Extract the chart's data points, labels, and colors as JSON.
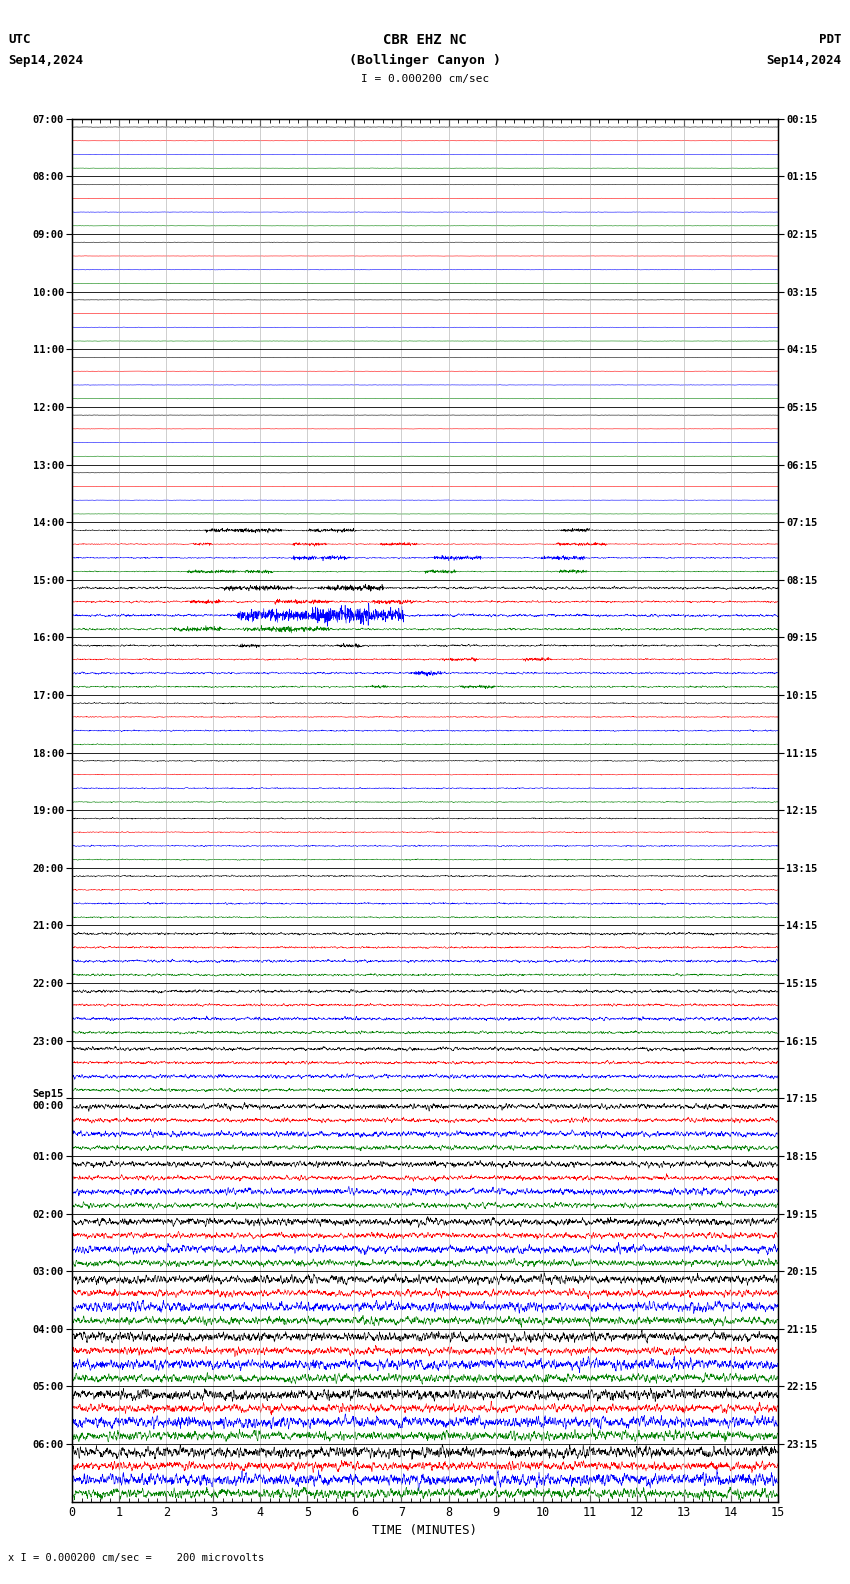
{
  "title_line1": "CBR EHZ NC",
  "title_line2": "(Bollinger Canyon )",
  "title_line3": "I = 0.000200 cm/sec",
  "left_label": "UTC",
  "left_date": "Sep14,2024",
  "right_label": "PDT",
  "right_date": "Sep14,2024",
  "xlabel": "TIME (MINUTES)",
  "footer": "x I = 0.000200 cm/sec =    200 microvolts",
  "xlim": [
    0,
    15
  ],
  "xticks": [
    0,
    1,
    2,
    3,
    4,
    5,
    6,
    7,
    8,
    9,
    10,
    11,
    12,
    13,
    14,
    15
  ],
  "utc_times": [
    "07:00",
    "08:00",
    "09:00",
    "10:00",
    "11:00",
    "12:00",
    "13:00",
    "14:00",
    "15:00",
    "16:00",
    "17:00",
    "18:00",
    "19:00",
    "20:00",
    "21:00",
    "22:00",
    "23:00",
    "Sep15\n00:00",
    "01:00",
    "02:00",
    "03:00",
    "04:00",
    "05:00",
    "06:00"
  ],
  "pdt_times": [
    "00:15",
    "01:15",
    "02:15",
    "03:15",
    "04:15",
    "05:15",
    "06:15",
    "07:15",
    "08:15",
    "09:15",
    "10:15",
    "11:15",
    "12:15",
    "13:15",
    "14:15",
    "15:15",
    "16:15",
    "17:15",
    "18:15",
    "19:15",
    "20:15",
    "21:15",
    "22:15",
    "23:15"
  ],
  "n_rows": 24,
  "traces_per_row": 4,
  "colors": [
    "black",
    "red",
    "blue",
    "green"
  ],
  "bg_color": "#ffffff",
  "grid_color": "#aaaaaa",
  "figsize": [
    8.5,
    15.84
  ],
  "dpi": 100,
  "amp_profile": [
    0.012,
    0.012,
    0.012,
    0.012,
    0.012,
    0.012,
    0.012,
    0.04,
    0.08,
    0.06,
    0.04,
    0.035,
    0.04,
    0.05,
    0.08,
    0.1,
    0.12,
    0.18,
    0.2,
    0.25,
    0.3,
    0.32,
    0.35,
    0.38
  ]
}
